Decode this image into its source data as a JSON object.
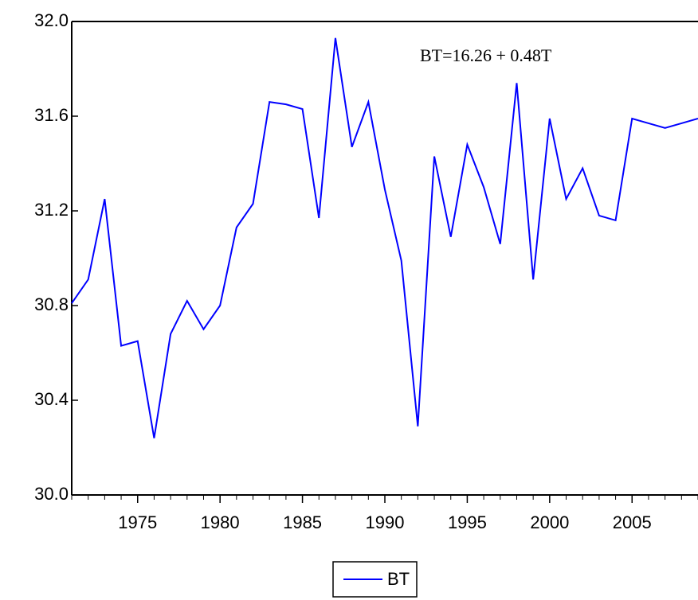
{
  "chart_data": {
    "type": "line",
    "annotation": "BT=16.26 + 0.48T",
    "x": [
      1971,
      1972,
      1973,
      1974,
      1975,
      1976,
      1977,
      1978,
      1979,
      1980,
      1981,
      1982,
      1983,
      1984,
      1985,
      1986,
      1987,
      1988,
      1989,
      1990,
      1991,
      1992,
      1993,
      1994,
      1995,
      1996,
      1997,
      1998,
      1999,
      2000,
      2001,
      2002,
      2003,
      2004,
      2005,
      2006,
      2007,
      2008,
      2009
    ],
    "series": [
      {
        "name": "BT",
        "color": "#0000ff",
        "values": [
          30.81,
          30.91,
          31.25,
          30.63,
          30.65,
          30.24,
          30.68,
          30.82,
          30.7,
          30.8,
          31.13,
          31.23,
          31.66,
          31.65,
          31.63,
          31.17,
          31.93,
          31.47,
          31.66,
          31.29,
          30.99,
          30.29,
          31.43,
          31.09,
          31.48,
          31.3,
          31.06,
          31.74,
          30.91,
          31.59,
          31.25,
          31.38,
          31.18,
          31.16,
          31.59,
          31.57,
          31.55,
          31.57,
          31.59
        ]
      }
    ],
    "xlim": [
      1971,
      2009
    ],
    "xticks": [
      1975,
      1980,
      1985,
      1990,
      1995,
      2000,
      2005
    ],
    "ylim": [
      30,
      32
    ],
    "yticks": [
      {
        "value": 30,
        "label": "30.0"
      },
      {
        "value": 30.4,
        "label": "30.4"
      },
      {
        "value": 30.8,
        "label": "30.8"
      },
      {
        "value": 31.2,
        "label": "31.2"
      },
      {
        "value": 31.6,
        "label": "31.6"
      },
      {
        "value": 32,
        "label": "32.0"
      }
    ],
    "legend": "bottom"
  }
}
